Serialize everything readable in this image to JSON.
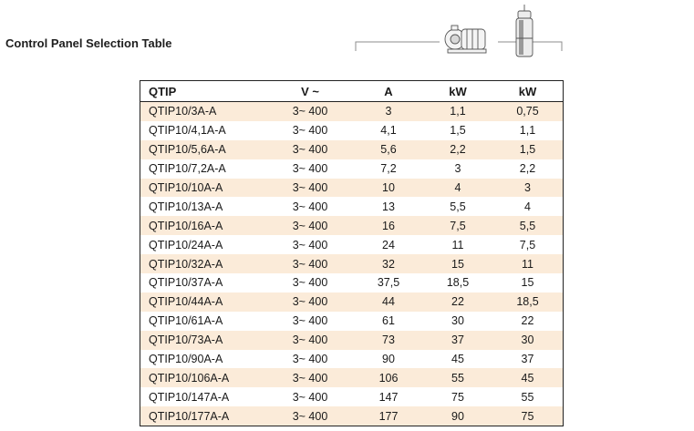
{
  "page": {
    "title": "Control Panel Selection Table"
  },
  "table": {
    "headers": [
      "QTIP",
      "V ~",
      "A",
      "kW",
      "kW"
    ],
    "rows": [
      [
        "QTIP10/3A-A",
        "3~ 400",
        "3",
        "1,1",
        "0,75"
      ],
      [
        "QTIP10/4,1A-A",
        "3~ 400",
        "4,1",
        "1,5",
        "1,1"
      ],
      [
        "QTIP10/5,6A-A",
        "3~ 400",
        "5,6",
        "2,2",
        "1,5"
      ],
      [
        "QTIP10/7,2A-A",
        "3~ 400",
        "7,2",
        "3",
        "2,2"
      ],
      [
        "QTIP10/10A-A",
        "3~ 400",
        "10",
        "4",
        "3"
      ],
      [
        "QTIP10/13A-A",
        "3~ 400",
        "13",
        "5,5",
        "4"
      ],
      [
        "QTIP10/16A-A",
        "3~ 400",
        "16",
        "7,5",
        "5,5"
      ],
      [
        "QTIP10/24A-A",
        "3~ 400",
        "24",
        "11",
        "7,5"
      ],
      [
        "QTIP10/32A-A",
        "3~ 400",
        "32",
        "15",
        "11"
      ],
      [
        "QTIP10/37A-A",
        "3~ 400",
        "37,5",
        "18,5",
        "15"
      ],
      [
        "QTIP10/44A-A",
        "3~ 400",
        "44",
        "22",
        "18,5"
      ],
      [
        "QTIP10/61A-A",
        "3~ 400",
        "61",
        "30",
        "22"
      ],
      [
        "QTIP10/73A-A",
        "3~ 400",
        "73",
        "37",
        "30"
      ],
      [
        "QTIP10/90A-A",
        "3~ 400",
        "90",
        "45",
        "37"
      ],
      [
        "QTIP10/106A-A",
        "3~ 400",
        "106",
        "55",
        "45"
      ],
      [
        "QTIP10/147A-A",
        "3~ 400",
        "147",
        "75",
        "55"
      ],
      [
        "QTIP10/177A-A",
        "3~ 400",
        "177",
        "90",
        "75"
      ]
    ]
  },
  "icons": {
    "surface_pump": "surface-pump-icon",
    "submersible_pump": "submersible-pump-icon"
  },
  "colors": {
    "stripe": "#fbebd9",
    "border": "#222222",
    "illustration_stroke": "#8c8c8c"
  }
}
